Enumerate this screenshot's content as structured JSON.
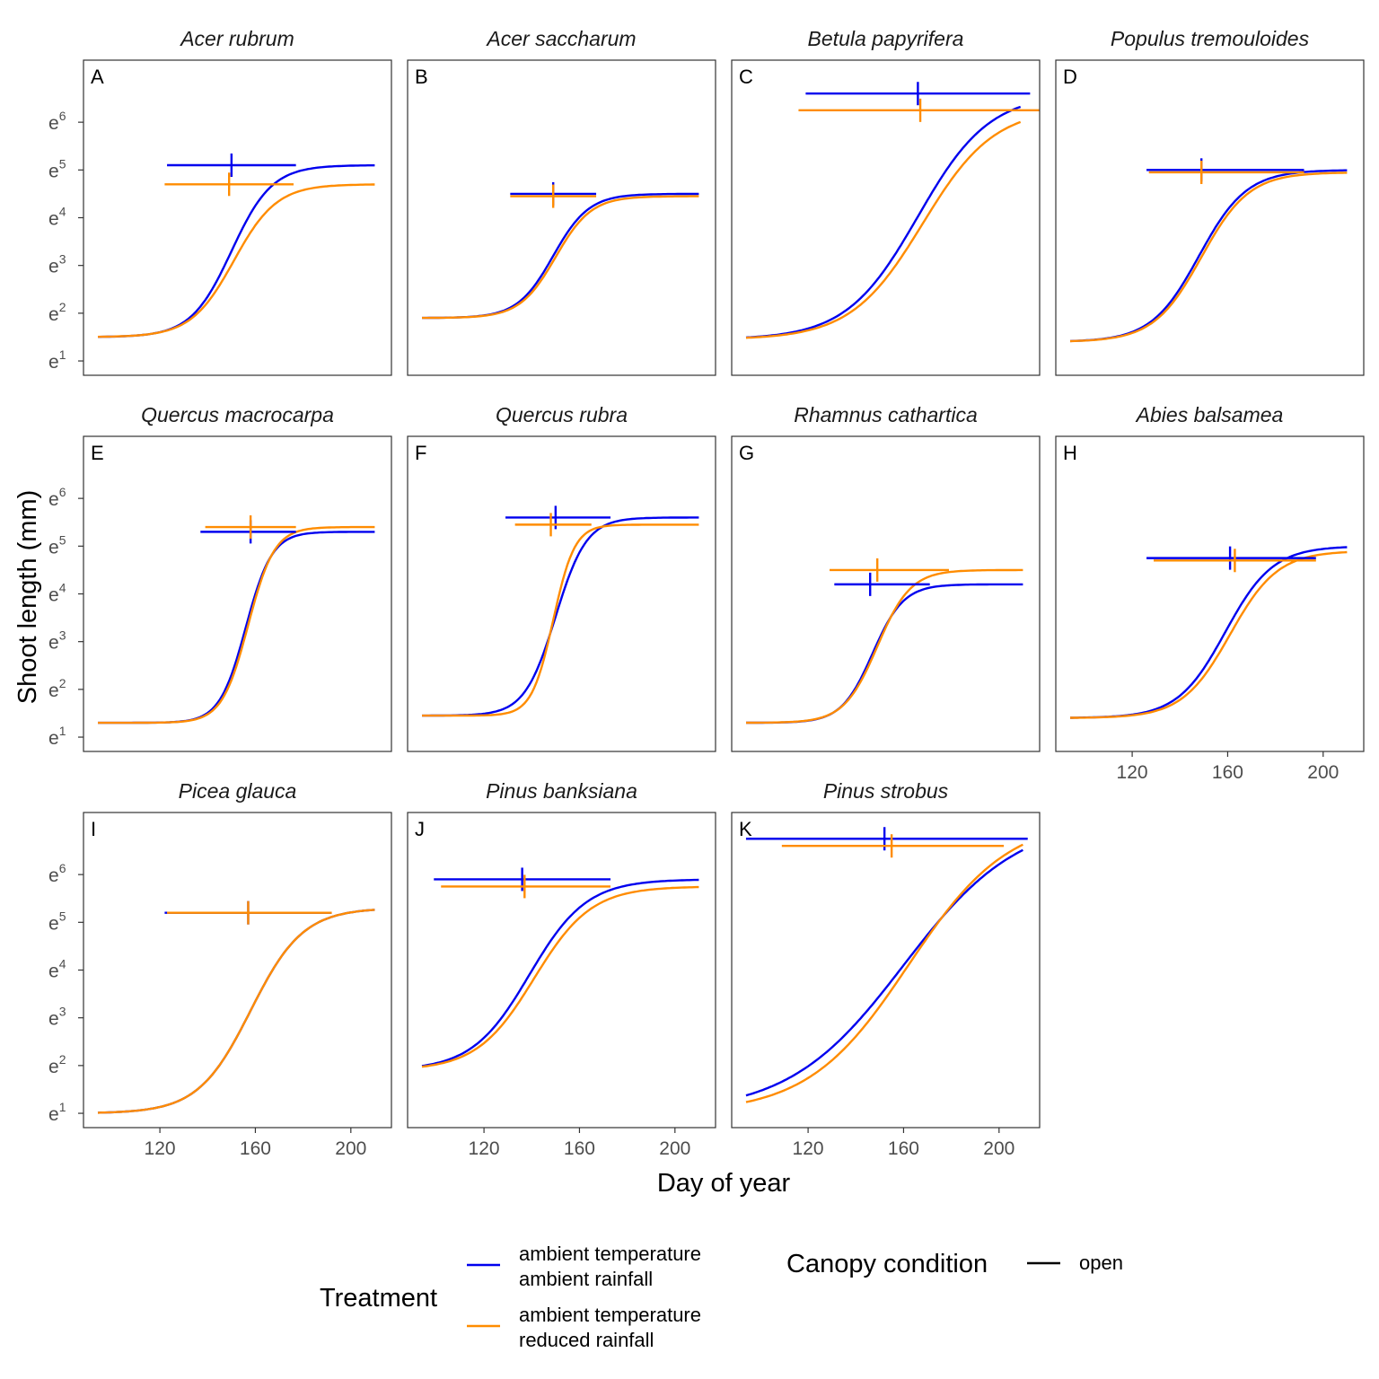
{
  "figure": {
    "xlabel": "Day of year",
    "ylabel": "Shoot length (mm)"
  },
  "legend": {
    "treatment_title": "Treatment",
    "canopy_title": "Canopy condition",
    "canopy_items": [
      {
        "label": "open",
        "color": "#000000"
      }
    ],
    "treatment_items": [
      {
        "line1": "ambient temperature",
        "line2": "ambient rainfall",
        "color": "#0000EE"
      },
      {
        "line1": "ambient temperature",
        "line2": "reduced rainfall",
        "color": "#FF8C00"
      }
    ]
  },
  "chart_data": {
    "type": "line",
    "y_scale": "log (base e)",
    "xlim": [
      88,
      217
    ],
    "ylim": [
      0.7,
      7.3
    ],
    "x_ticks": [
      120,
      160,
      200
    ],
    "y_ticks": [
      {
        "base": "e",
        "exp": "1",
        "value": 1
      },
      {
        "base": "e",
        "exp": "2",
        "value": 2
      },
      {
        "base": "e",
        "exp": "3",
        "value": 3
      },
      {
        "base": "e",
        "exp": "4",
        "value": 4
      },
      {
        "base": "e",
        "exp": "5",
        "value": 5
      },
      {
        "base": "e",
        "exp": "6",
        "value": 6
      }
    ],
    "series_colors": [
      "#0000EE",
      "#FF8C00"
    ],
    "panels": [
      {
        "letter": "A",
        "species": "Acer rubrum",
        "curves": [
          {
            "lower": 1.5,
            "upper": 5.1,
            "mid": 150,
            "scale": 8.5,
            "x0": 94,
            "x1": 210
          },
          {
            "lower": 1.5,
            "upper": 4.7,
            "mid": 151,
            "scale": 9.0,
            "x0": 94,
            "x1": 210
          }
        ],
        "intervals": [
          {
            "y": 5.1,
            "lo": 123,
            "hi": 177,
            "mid": 150
          },
          {
            "y": 4.7,
            "lo": 122,
            "hi": 176,
            "mid": 149
          }
        ]
      },
      {
        "letter": "B",
        "species": "Acer saccharum",
        "curves": [
          {
            "lower": 1.9,
            "upper": 4.5,
            "mid": 149,
            "scale": 7.5,
            "x0": 94,
            "x1": 210
          },
          {
            "lower": 1.9,
            "upper": 4.45,
            "mid": 150,
            "scale": 7.5,
            "x0": 94,
            "x1": 210
          }
        ],
        "intervals": [
          {
            "y": 4.5,
            "lo": 131,
            "hi": 167,
            "mid": 149
          },
          {
            "y": 4.45,
            "lo": 131,
            "hi": 167,
            "mid": 149
          }
        ]
      },
      {
        "letter": "C",
        "species": "Betula papyrifera",
        "curves": [
          {
            "lower": 1.45,
            "upper": 6.6,
            "mid": 166,
            "scale": 15,
            "x0": 94,
            "x1": 209
          },
          {
            "lower": 1.45,
            "upper": 6.3,
            "mid": 168,
            "scale": 15,
            "x0": 94,
            "x1": 209
          }
        ],
        "intervals": [
          {
            "y": 6.6,
            "lo": 119,
            "hi": 213,
            "mid": 166
          },
          {
            "y": 6.25,
            "lo": 116,
            "hi": 217,
            "mid": 167
          }
        ]
      },
      {
        "letter": "D",
        "species": "Populus tremouloides",
        "curves": [
          {
            "lower": 1.4,
            "upper": 5.0,
            "mid": 148,
            "scale": 10,
            "x0": 94,
            "x1": 210
          },
          {
            "lower": 1.4,
            "upper": 4.95,
            "mid": 149,
            "scale": 10,
            "x0": 94,
            "x1": 210
          }
        ],
        "intervals": [
          {
            "y": 5.0,
            "lo": 126,
            "hi": 192,
            "mid": 149
          },
          {
            "y": 4.95,
            "lo": 127,
            "hi": 192,
            "mid": 149
          }
        ]
      },
      {
        "letter": "E",
        "species": "Quercus macrocarpa",
        "curves": [
          {
            "lower": 1.3,
            "upper": 5.3,
            "mid": 156,
            "scale": 5.5,
            "x0": 94,
            "x1": 210
          },
          {
            "lower": 1.3,
            "upper": 5.4,
            "mid": 157,
            "scale": 5.5,
            "x0": 94,
            "x1": 210
          }
        ],
        "intervals": [
          {
            "y": 5.3,
            "lo": 137,
            "hi": 177,
            "mid": 158
          },
          {
            "y": 5.4,
            "lo": 139,
            "hi": 177,
            "mid": 158
          }
        ]
      },
      {
        "letter": "F",
        "species": "Quercus rubra",
        "curves": [
          {
            "lower": 1.45,
            "upper": 5.6,
            "mid": 150,
            "scale": 6.5,
            "x0": 94,
            "x1": 210
          },
          {
            "lower": 1.45,
            "upper": 5.45,
            "mid": 149,
            "scale": 4.5,
            "x0": 94,
            "x1": 210
          }
        ],
        "intervals": [
          {
            "y": 5.6,
            "lo": 129,
            "hi": 173,
            "mid": 150
          },
          {
            "y": 5.45,
            "lo": 133,
            "hi": 165,
            "mid": 148
          }
        ]
      },
      {
        "letter": "G",
        "species": "Rhamnus cathartica",
        "curves": [
          {
            "lower": 1.3,
            "upper": 4.2,
            "mid": 147,
            "scale": 6.5,
            "x0": 94,
            "x1": 210
          },
          {
            "lower": 1.3,
            "upper": 4.5,
            "mid": 149,
            "scale": 7.0,
            "x0": 94,
            "x1": 210
          }
        ],
        "intervals": [
          {
            "y": 4.2,
            "lo": 131,
            "hi": 171,
            "mid": 146
          },
          {
            "y": 4.5,
            "lo": 129,
            "hi": 179,
            "mid": 149
          }
        ]
      },
      {
        "letter": "H",
        "species": "Abies balsamea",
        "curves": [
          {
            "lower": 1.4,
            "upper": 5.0,
            "mid": 159,
            "scale": 10,
            "x0": 94,
            "x1": 210
          },
          {
            "lower": 1.4,
            "upper": 4.9,
            "mid": 161,
            "scale": 10,
            "x0": 94,
            "x1": 210
          }
        ],
        "intervals": [
          {
            "y": 4.75,
            "lo": 126,
            "hi": 197,
            "mid": 161
          },
          {
            "y": 4.7,
            "lo": 129,
            "hi": 197,
            "mid": 163
          }
        ]
      },
      {
        "letter": "I",
        "species": "Picea glauca",
        "curves": [
          {
            "lower": 1.0,
            "upper": 5.3,
            "mid": 158,
            "scale": 11,
            "x0": 94,
            "x1": 210
          },
          {
            "lower": 1.0,
            "upper": 5.3,
            "mid": 158,
            "scale": 11,
            "x0": 94,
            "x1": 210
          }
        ],
        "intervals": [
          {
            "y": 5.2,
            "lo": 122,
            "hi": 192,
            "mid": 157
          },
          {
            "y": 5.2,
            "lo": 123,
            "hi": 192,
            "mid": 157
          }
        ]
      },
      {
        "letter": "J",
        "species": "Pinus banksiana",
        "curves": [
          {
            "lower": 1.9,
            "upper": 5.9,
            "mid": 139,
            "scale": 12,
            "x0": 94,
            "x1": 210
          },
          {
            "lower": 1.9,
            "upper": 5.75,
            "mid": 141,
            "scale": 12,
            "x0": 94,
            "x1": 210
          }
        ],
        "intervals": [
          {
            "y": 5.9,
            "lo": 99,
            "hi": 173,
            "mid": 136
          },
          {
            "y": 5.75,
            "lo": 102,
            "hi": 173,
            "mid": 137
          }
        ]
      },
      {
        "letter": "K",
        "species": "Pinus strobus",
        "curves": [
          {
            "lower": 1.0,
            "upper": 7.2,
            "mid": 160,
            "scale": 24,
            "x0": 94,
            "x1": 210
          },
          {
            "lower": 1.0,
            "upper": 7.2,
            "mid": 162,
            "scale": 21,
            "x0": 94,
            "x1": 210
          }
        ],
        "intervals": [
          {
            "y": 6.75,
            "lo": 94,
            "hi": 212,
            "mid": 152
          },
          {
            "y": 6.6,
            "lo": 109,
            "hi": 202,
            "mid": 155
          }
        ]
      }
    ]
  }
}
